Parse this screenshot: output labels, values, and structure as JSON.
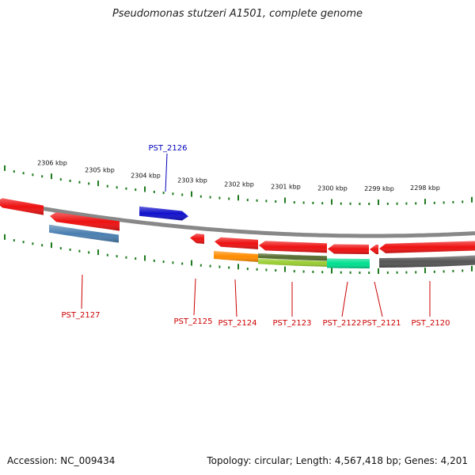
{
  "title": "Pseudomonas stutzeri A1501, complete genome",
  "footer": {
    "accession": "Accession: NC_009434",
    "summary": "Topology: circular; Length: 4,567,418 bp; Genes: 4,201"
  },
  "colors": {
    "backbone": "#888888",
    "tick": "#1e7a1e",
    "label_forward": "#0000bb",
    "label_reverse": "#cc0000"
  },
  "scale_labels": [
    "2306 kbp",
    "2305 kbp",
    "2304 kbp",
    "2303 kbp",
    "2302 kbp",
    "2301 kbp",
    "2300 kbp",
    "2299 kbp",
    "2298 kbp"
  ],
  "genes": [
    {
      "name": "",
      "color": "#ee1111",
      "strand": "reverse"
    },
    {
      "name": "PST_2127",
      "color": "#ee1111",
      "strand": "reverse"
    },
    {
      "name": "PST_2126",
      "color": "#1111cc",
      "strand": "forward"
    },
    {
      "name": "PST_2125",
      "color": "#ee1111",
      "strand": "reverse"
    },
    {
      "name": "PST_2124",
      "color": "#ee1111",
      "strand": "reverse"
    },
    {
      "name": "PST_2123",
      "color": "#ee1111",
      "strand": "reverse"
    },
    {
      "name": "PST_2122",
      "color": "#ee1111",
      "strand": "reverse"
    },
    {
      "name": "PST_2121",
      "color": "#ee1111",
      "strand": "reverse"
    },
    {
      "name": "PST_2120",
      "color": "#ee1111",
      "strand": "reverse"
    }
  ],
  "features": [
    {
      "color": "#4a7fb0"
    },
    {
      "color": "#ff8c00"
    },
    {
      "color": "#9acd32"
    },
    {
      "color": "#556b2f"
    },
    {
      "color": "#00e090"
    },
    {
      "color": "#555555"
    }
  ]
}
